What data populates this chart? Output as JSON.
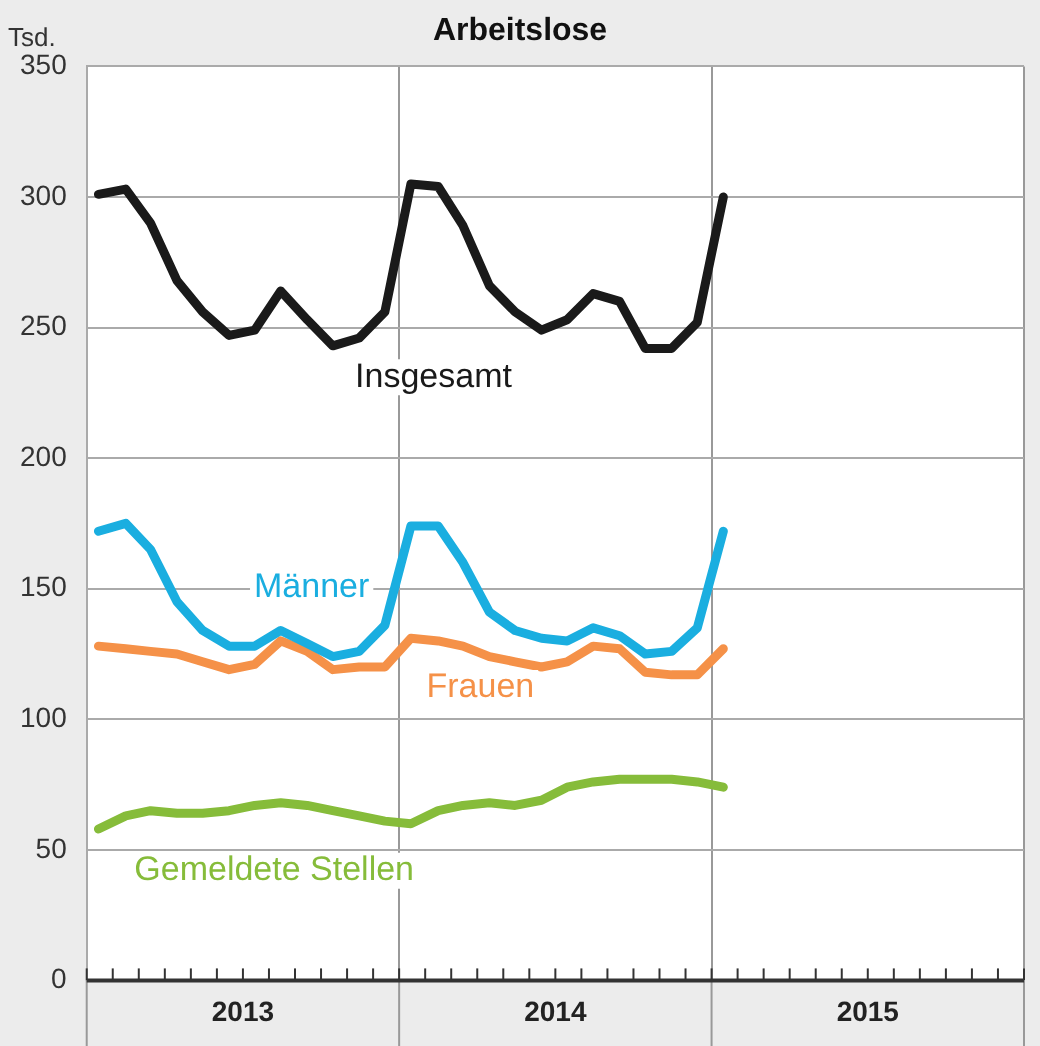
{
  "chart_data": {
    "type": "line",
    "title": "Arbeitslose",
    "ylabel": "Tsd.",
    "x": [
      "2013-01-15",
      "2013-02-15",
      "2013-03-15",
      "2013-04-15",
      "2013-05-15",
      "2013-06-15",
      "2013-07-15",
      "2013-08-15",
      "2013-09-15",
      "2013-10-15",
      "2013-11-15",
      "2013-12-15",
      "2014-01-15",
      "2014-02-15",
      "2014-03-15",
      "2014-04-15",
      "2014-05-15",
      "2014-06-15",
      "2014-07-15",
      "2014-08-15",
      "2014-09-15",
      "2014-10-15",
      "2014-11-15",
      "2014-12-15",
      "2015-01-15"
    ],
    "series": [
      {
        "name": "Insgesamt",
        "color": "#1a1a1a",
        "values": [
          301,
          303,
          290,
          268,
          256,
          247,
          249,
          264,
          253,
          243,
          246,
          256,
          305,
          304,
          289,
          266,
          256,
          249,
          253,
          263,
          260,
          242,
          242,
          252,
          300
        ]
      },
      {
        "name": "Männer",
        "color": "#1aaee0",
        "values": [
          172,
          175,
          165,
          145,
          134,
          128,
          128,
          134,
          129,
          124,
          126,
          136,
          174,
          174,
          160,
          141,
          134,
          131,
          130,
          135,
          132,
          125,
          126,
          135,
          172
        ]
      },
      {
        "name": "Frauen",
        "color": "#f59148",
        "values": [
          128,
          127,
          126,
          125,
          122,
          119,
          121,
          130,
          126,
          119,
          120,
          120,
          131,
          130,
          128,
          124,
          122,
          120,
          122,
          128,
          127,
          118,
          117,
          117,
          127
        ]
      },
      {
        "name": "Gemeldete Stellen",
        "color": "#86bc3a",
        "values": [
          58,
          63,
          65,
          64,
          64,
          65,
          67,
          68,
          67,
          65,
          63,
          61,
          60,
          65,
          67,
          68,
          67,
          69,
          74,
          76,
          77,
          77,
          77,
          76,
          74
        ]
      }
    ],
    "xlim": [
      "2013-01-01",
      "2016-01-01"
    ],
    "xticks": [
      {
        "value": "2013-01-01",
        "label": null
      },
      {
        "value": "2013-02-01",
        "label": null
      },
      {
        "value": "2013-03-01",
        "label": null
      },
      {
        "value": "2013-04-01",
        "label": null
      },
      {
        "value": "2013-05-01",
        "label": null
      },
      {
        "value": "2013-06-01",
        "label": null
      },
      {
        "value": "2013-07-01",
        "label": "2013"
      },
      {
        "value": "2013-08-01",
        "label": null
      },
      {
        "value": "2013-09-01",
        "label": null
      },
      {
        "value": "2013-10-01",
        "label": null
      },
      {
        "value": "2013-11-01",
        "label": null
      },
      {
        "value": "2013-12-01",
        "label": null
      },
      {
        "value": "2014-01-01",
        "label": null
      },
      {
        "value": "2014-02-01",
        "label": null
      },
      {
        "value": "2014-03-01",
        "label": null
      },
      {
        "value": "2014-04-01",
        "label": null
      },
      {
        "value": "2014-05-01",
        "label": null
      },
      {
        "value": "2014-06-01",
        "label": null
      },
      {
        "value": "2014-07-01",
        "label": "2014"
      },
      {
        "value": "2014-08-01",
        "label": null
      },
      {
        "value": "2014-09-01",
        "label": null
      },
      {
        "value": "2014-10-01",
        "label": null
      },
      {
        "value": "2014-11-01",
        "label": null
      },
      {
        "value": "2014-12-01",
        "label": null
      },
      {
        "value": "2015-01-01",
        "label": null
      },
      {
        "value": "2015-02-01",
        "label": null
      },
      {
        "value": "2015-03-01",
        "label": null
      },
      {
        "value": "2015-04-01",
        "label": null
      },
      {
        "value": "2015-05-01",
        "label": null
      },
      {
        "value": "2015-06-01",
        "label": null
      },
      {
        "value": "2015-07-01",
        "label": "2015"
      },
      {
        "value": "2015-08-01",
        "label": null
      },
      {
        "value": "2015-09-01",
        "label": null
      },
      {
        "value": "2015-10-01",
        "label": null
      },
      {
        "value": "2015-11-01",
        "label": null
      },
      {
        "value": "2015-12-01",
        "label": null
      },
      {
        "value": "2016-01-01",
        "label": null
      }
    ],
    "ylim": [
      0,
      350
    ],
    "yticks": [
      0,
      50,
      100,
      150,
      200,
      250,
      300,
      350
    ],
    "grid": true,
    "legend": false,
    "marker": "none",
    "line_style": "solid"
  }
}
